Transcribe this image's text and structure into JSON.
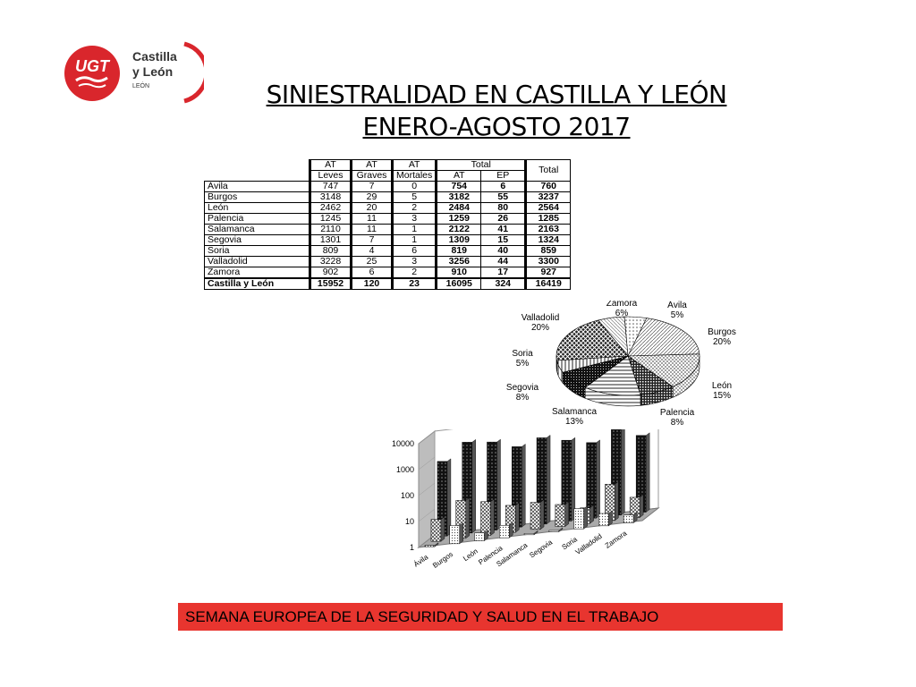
{
  "logo": {
    "brand": "UGT",
    "region_line1": "Castilla",
    "region_line2": "y León",
    "sub": "LEÓN",
    "color": "#d9262c"
  },
  "title": {
    "line1": "SINIESTRALIDAD EN CASTILLA Y LEÓN",
    "line2": "ENERO-AGOSTO 2017"
  },
  "table": {
    "header_top": [
      "AT",
      "AT",
      "AT",
      "Total",
      "Total"
    ],
    "header_sub": [
      "Leves",
      "Graves",
      "Mortales",
      "AT",
      "EP"
    ],
    "rows": [
      {
        "prov": "Ávila",
        "leves": "747",
        "graves": "7",
        "mortales": "0",
        "at": "754",
        "ep": "6",
        "total": "760"
      },
      {
        "prov": "Burgos",
        "leves": "3148",
        "graves": "29",
        "mortales": "5",
        "at": "3182",
        "ep": "55",
        "total": "3237"
      },
      {
        "prov": "León",
        "leves": "2462",
        "graves": "20",
        "mortales": "2",
        "at": "2484",
        "ep": "80",
        "total": "2564"
      },
      {
        "prov": "Palencia",
        "leves": "1245",
        "graves": "11",
        "mortales": "3",
        "at": "1259",
        "ep": "26",
        "total": "1285"
      },
      {
        "prov": "Salamanca",
        "leves": "2110",
        "graves": "11",
        "mortales": "1",
        "at": "2122",
        "ep": "41",
        "total": "2163"
      },
      {
        "prov": "Segovia",
        "leves": "1301",
        "graves": "7",
        "mortales": "1",
        "at": "1309",
        "ep": "15",
        "total": "1324"
      },
      {
        "prov": "Soria",
        "leves": "809",
        "graves": "4",
        "mortales": "6",
        "at": "819",
        "ep": "40",
        "total": "859"
      },
      {
        "prov": "Valladolid",
        "leves": "3228",
        "graves": "25",
        "mortales": "3",
        "at": "3256",
        "ep": "44",
        "total": "3300"
      },
      {
        "prov": "Zamora",
        "leves": "902",
        "graves": "6",
        "mortales": "2",
        "at": "910",
        "ep": "17",
        "total": "927"
      }
    ],
    "total_row": {
      "prov": "Castilla y León",
      "leves": "15952",
      "graves": "120",
      "mortales": "23",
      "at": "16095",
      "ep": "324",
      "total": "16419"
    }
  },
  "chart_data": [
    {
      "type": "pie",
      "title": "",
      "slices": [
        {
          "label": "Ávila",
          "pct": "5%",
          "value": 5
        },
        {
          "label": "Burgos",
          "pct": "20%",
          "value": 20
        },
        {
          "label": "León",
          "pct": "15%",
          "value": 15
        },
        {
          "label": "Palencia",
          "pct": "8%",
          "value": 8
        },
        {
          "label": "Salamanca",
          "pct": "13%",
          "value": 13
        },
        {
          "label": "Segovia",
          "pct": "8%",
          "value": 8
        },
        {
          "label": "Soria",
          "pct": "5%",
          "value": 5
        },
        {
          "label": "Valladolid",
          "pct": "20%",
          "value": 20
        },
        {
          "label": "Zamora",
          "pct": "6%",
          "value": 6
        }
      ]
    },
    {
      "type": "bar",
      "title": "",
      "xlabel": "",
      "ylabel": "",
      "yscale": "log",
      "ylim": [
        1,
        10000
      ],
      "yticks": [
        "10000",
        "1000",
        "100",
        "10",
        "1"
      ],
      "categories": [
        "Ávila",
        "Burgos",
        "León",
        "Palencia",
        "Salamanca",
        "Segovia",
        "Soria",
        "Valladolid",
        "Zamora"
      ],
      "series": [
        {
          "values": [
            747,
            3148,
            2462,
            1245,
            2110,
            1301,
            809,
            3228,
            902
          ]
        },
        {
          "values": [
            7,
            29,
            20,
            11,
            11,
            7,
            4,
            25,
            6
          ]
        },
        {
          "values": [
            0,
            5,
            2,
            3,
            1,
            1,
            6,
            3,
            2
          ]
        }
      ]
    }
  ],
  "footer": {
    "text": "SEMANA EUROPEA DE LA SEGURIDAD Y SALUD EN EL TRABAJO",
    "color": "#e8352f"
  }
}
